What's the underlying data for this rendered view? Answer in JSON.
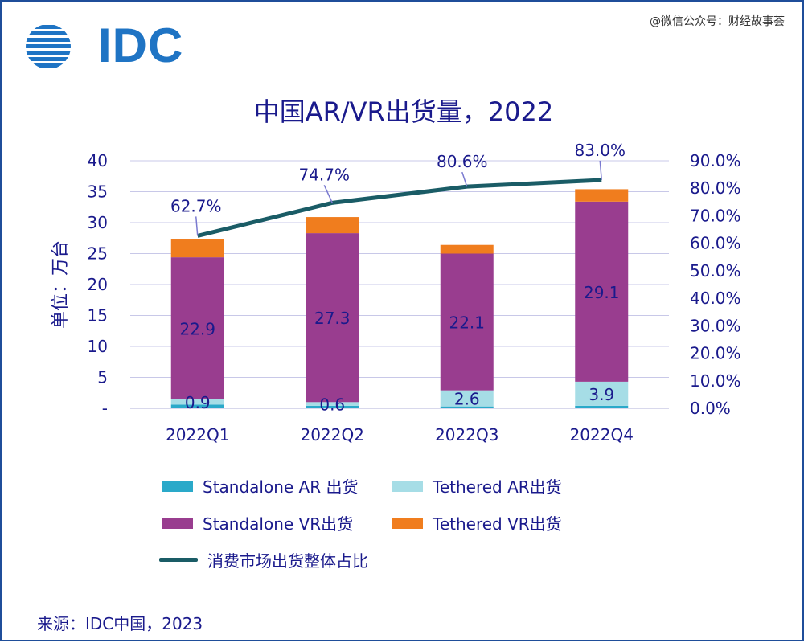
{
  "logo": {
    "text": "IDC"
  },
  "watermark": "@微信公众号：财经故事荟",
  "source": "来源：IDC中国，2023",
  "chart_data": {
    "type": "bar",
    "stacked": true,
    "title": "中国AR/VR出货量，2022",
    "ylabel": "单位：万台",
    "categories": [
      "2022Q1",
      "2022Q2",
      "2022Q3",
      "2022Q4"
    ],
    "ylim": [
      0,
      40
    ],
    "y_ticks": [
      "-",
      "5",
      "10",
      "15",
      "20",
      "25",
      "30",
      "35",
      "40"
    ],
    "y2lim": [
      0,
      90
    ],
    "y2_ticks": [
      "0.0%",
      "10.0%",
      "20.0%",
      "30.0%",
      "40.0%",
      "50.0%",
      "60.0%",
      "70.0%",
      "80.0%",
      "90.0%"
    ],
    "grid": true,
    "legend_position": "bottom",
    "series": [
      {
        "name": "Standalone AR 出货",
        "color": "#2aa9c9",
        "values": [
          0.6,
          0.4,
          0.3,
          0.4
        ]
      },
      {
        "name": "Tethered AR出货",
        "color": "#a6dde6",
        "values": [
          0.9,
          0.6,
          2.6,
          3.9
        ],
        "labels": [
          "0.9",
          "0.6",
          "2.6",
          "3.9"
        ]
      },
      {
        "name": "Standalone VR出货",
        "color": "#993d8f",
        "values": [
          22.9,
          27.3,
          22.1,
          29.1
        ],
        "labels": [
          "22.9",
          "27.3",
          "22.1",
          "29.1"
        ]
      },
      {
        "name": "Tethered VR出货",
        "color": "#f07d1e",
        "values": [
          3.0,
          2.6,
          1.4,
          2.0
        ]
      }
    ],
    "line_series": {
      "name": "消费市场出货整体占比",
      "color": "#1a5c66",
      "axis": "y2",
      "values": [
        62.7,
        74.7,
        80.6,
        83.0
      ],
      "labels": [
        "62.7%",
        "74.7%",
        "80.6%",
        "83.0%"
      ]
    }
  }
}
